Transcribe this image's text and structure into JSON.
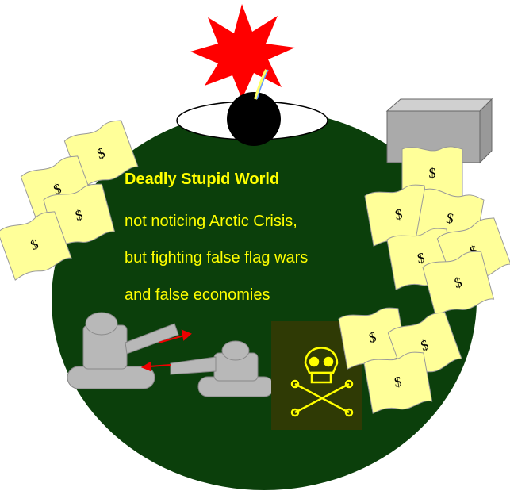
{
  "caption": {
    "title": "Deadly Stupid World",
    "lines": [
      "not noticing Arctic Crisis,",
      "but fighting false flag wars",
      "and false economies"
    ]
  },
  "bills": [
    "$",
    "$",
    "$",
    "$",
    "$",
    "$",
    "$",
    "$",
    "$",
    "$",
    "$",
    "$",
    "$"
  ]
}
